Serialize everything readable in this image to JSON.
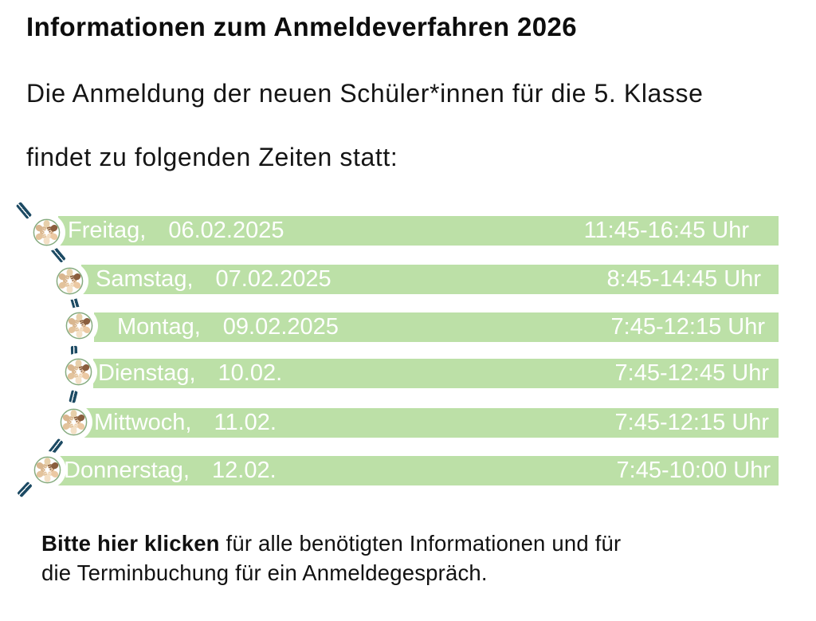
{
  "page": {
    "title": "Informationen zum Anmeldeverfahren 2026",
    "intro_line1": "Die Anmeldung der neuen Schüler*innen für die 5. Klasse",
    "intro_line2": "findet zu folgenden Zeiten statt:"
  },
  "schedule": {
    "row_icon": "hands-circle-icon",
    "rows": [
      {
        "day": "Freitag,",
        "date": "06.02.2025",
        "time": "11:45-16:45 Uhr"
      },
      {
        "day": "Samstag,",
        "date": "07.02.2025",
        "time": "8:45-14:45 Uhr"
      },
      {
        "day": "Montag,",
        "date": "09.02.2025",
        "time": "7:45-12:15 Uhr"
      },
      {
        "day": "Dienstag,",
        "date": "10.02.",
        "time": "7:45-12:45 Uhr"
      },
      {
        "day": "Mittwoch,",
        "date": "11.02.",
        "time": "7:45-12:15 Uhr"
      },
      {
        "day": "Donnerstag,",
        "date": "12.02.",
        "time": "7:45-10:00 Uhr"
      }
    ]
  },
  "footer": {
    "link_label": "Bitte hier klicken",
    "rest_line1": " für alle benötigten Informationen und für",
    "line2": "die Terminbuchung für ein Anmeldegespräch."
  },
  "colors": {
    "bar_green": "#bce0a7",
    "bar_text": "#ffffff",
    "dash_navy": "#1c4a63",
    "ink": "#0d0d0d",
    "icon_ring": "#86ab7f",
    "hand_tones": [
      "#e7cfa9",
      "#8a5e3e",
      "#ecc9a3",
      "#f3e0c6",
      "#e3c39c",
      "#d9b68f"
    ]
  }
}
